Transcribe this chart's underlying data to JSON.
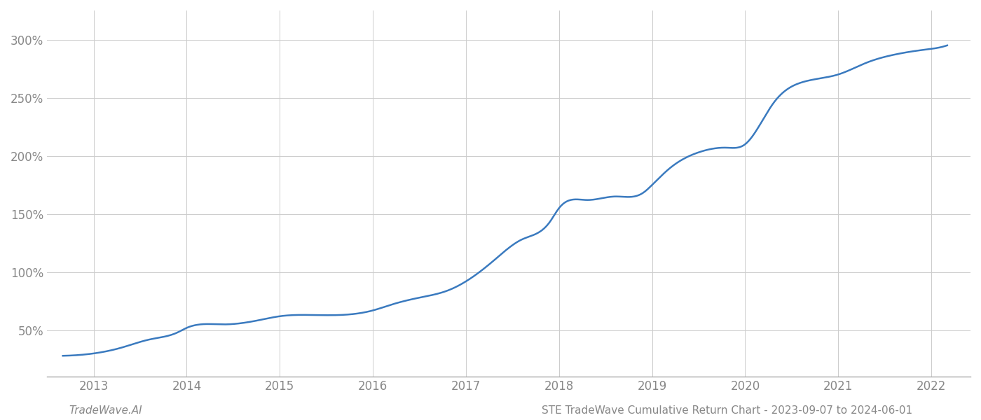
{
  "title": "STE TradeWave Cumulative Return Chart - 2023-09-07 to 2024-06-01",
  "watermark": "TradeWave.AI",
  "x_years": [
    2013,
    2014,
    2015,
    2016,
    2017,
    2018,
    2019,
    2020,
    2021,
    2022
  ],
  "x_data": [
    2012.67,
    2013.0,
    2013.3,
    2013.6,
    2013.9,
    2014.0,
    2014.4,
    2014.8,
    2015.0,
    2015.4,
    2015.8,
    2016.0,
    2016.2,
    2016.5,
    2016.8,
    2017.0,
    2017.3,
    2017.6,
    2017.9,
    2018.0,
    2018.3,
    2018.6,
    2018.9,
    2019.0,
    2019.2,
    2019.5,
    2019.8,
    2020.0,
    2020.3,
    2020.6,
    2020.9,
    2021.0,
    2021.3,
    2021.6,
    2021.9,
    2022.0,
    2022.17
  ],
  "y_data": [
    28,
    30,
    35,
    42,
    48,
    52,
    55,
    59,
    62,
    63,
    64,
    67,
    72,
    78,
    84,
    92,
    110,
    128,
    143,
    155,
    162,
    165,
    168,
    175,
    190,
    203,
    207,
    210,
    245,
    263,
    268,
    270,
    280,
    287,
    291,
    292,
    295
  ],
  "line_color": "#3a7abf",
  "line_width": 1.8,
  "background_color": "#ffffff",
  "grid_color": "#cccccc",
  "yticks": [
    50,
    100,
    150,
    200,
    250,
    300
  ],
  "ylim": [
    10,
    325
  ],
  "xlim": [
    2012.5,
    2022.42
  ],
  "tick_label_color": "#888888",
  "footer_left_text": "TradeWave.AI",
  "footer_right_text": "STE TradeWave Cumulative Return Chart - 2023-09-07 to 2024-06-01",
  "footer_fontsize": 11
}
